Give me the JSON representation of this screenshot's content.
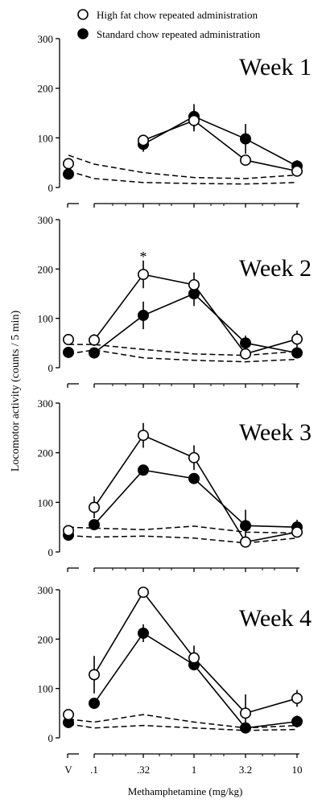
{
  "legend": {
    "items": [
      {
        "label": "High fat chow repeated administration",
        "marker": "open-circle"
      },
      {
        "label": "Standard chow repeated administration",
        "marker": "filled-circle"
      }
    ]
  },
  "shared_axes": {
    "ylabel": "Locomotor activity (counts / 5 min)",
    "xlabel": "Methamphetamine (mg/kg)",
    "x_tick_labels": [
      "V",
      ".1",
      ".32",
      "1",
      "3.2",
      "10"
    ]
  },
  "chart_data": [
    {
      "type": "line",
      "title": "Week 1",
      "categories": [
        "V",
        ".1",
        ".32",
        "1",
        "3.2",
        "10"
      ],
      "ylim": [
        0,
        300
      ],
      "yticks": [
        "0",
        "100",
        "200",
        "300"
      ],
      "series": [
        {
          "name": "High fat chow repeated administration",
          "marker": "open-circle",
          "points": [
            {
              "x": "V",
              "y": 48,
              "err": 0
            },
            {
              "x": ".32",
              "y": 95,
              "err": 8
            },
            {
              "x": "1",
              "y": 135,
              "err": 22
            },
            {
              "x": "3.2",
              "y": 55,
              "err": 0
            },
            {
              "x": "10",
              "y": 33,
              "err": 0
            }
          ]
        },
        {
          "name": "Standard chow repeated administration",
          "marker": "filled-circle",
          "points": [
            {
              "x": "V",
              "y": 27,
              "err": 0
            },
            {
              "x": ".32",
              "y": 87,
              "err": 15
            },
            {
              "x": "1",
              "y": 143,
              "err": 25
            },
            {
              "x": "3.2",
              "y": 98,
              "err": 30
            },
            {
              "x": "10",
              "y": 43,
              "err": 12
            }
          ]
        }
      ],
      "reference_lines": [
        {
          "style": "dashed",
          "values": [
            65,
            47,
            30,
            20,
            18,
            25
          ]
        },
        {
          "style": "dashed",
          "values": [
            33,
            18,
            10,
            8,
            7,
            10
          ]
        }
      ],
      "annotations": []
    },
    {
      "type": "line",
      "title": "Week 2",
      "categories": [
        "V",
        ".1",
        ".32",
        "1",
        "3.2",
        "10"
      ],
      "ylim": [
        0,
        300
      ],
      "yticks": [
        "0",
        "100",
        "200",
        "300"
      ],
      "series": [
        {
          "name": "High fat chow repeated administration",
          "marker": "open-circle",
          "points": [
            {
              "x": "V",
              "y": 57,
              "err": 0
            },
            {
              "x": ".1",
              "y": 56,
              "err": 12
            },
            {
              "x": ".32",
              "y": 189,
              "err": 28
            },
            {
              "x": "1",
              "y": 168,
              "err": 25
            },
            {
              "x": "3.2",
              "y": 28,
              "err": 0
            },
            {
              "x": "10",
              "y": 58,
              "err": 17
            }
          ]
        },
        {
          "name": "Standard chow repeated administration",
          "marker": "filled-circle",
          "points": [
            {
              "x": "V",
              "y": 31,
              "err": 0
            },
            {
              "x": ".1",
              "y": 30,
              "err": 0
            },
            {
              "x": ".32",
              "y": 106,
              "err": 28
            },
            {
              "x": "1",
              "y": 150,
              "err": 25
            },
            {
              "x": "3.2",
              "y": 50,
              "err": 15
            },
            {
              "x": "10",
              "y": 30,
              "err": 0
            }
          ]
        }
      ],
      "reference_lines": [
        {
          "style": "dashed",
          "values": [
            47,
            47,
            37,
            28,
            25,
            33
          ]
        },
        {
          "style": "dashed",
          "values": [
            28,
            36,
            20,
            15,
            12,
            17
          ]
        }
      ],
      "annotations": [
        {
          "text": "*",
          "x": ".32",
          "y": 225
        }
      ]
    },
    {
      "type": "line",
      "title": "Week 3",
      "categories": [
        "V",
        ".1",
        ".32",
        "1",
        "3.2",
        "10"
      ],
      "ylim": [
        0,
        300
      ],
      "yticks": [
        "0",
        "100",
        "200",
        "300"
      ],
      "series": [
        {
          "name": "High fat chow repeated administration",
          "marker": "open-circle",
          "points": [
            {
              "x": "V",
              "y": 43,
              "err": 0
            },
            {
              "x": ".1",
              "y": 90,
              "err": 22
            },
            {
              "x": ".32",
              "y": 235,
              "err": 25
            },
            {
              "x": "1",
              "y": 190,
              "err": 25
            },
            {
              "x": "3.2",
              "y": 20,
              "err": 0
            },
            {
              "x": "10",
              "y": 40,
              "err": 0
            }
          ]
        },
        {
          "name": "Standard chow repeated administration",
          "marker": "filled-circle",
          "points": [
            {
              "x": "V",
              "y": 34,
              "err": 0
            },
            {
              "x": ".1",
              "y": 55,
              "err": 0
            },
            {
              "x": ".32",
              "y": 165,
              "err": 0
            },
            {
              "x": "1",
              "y": 148,
              "err": 0
            },
            {
              "x": "3.2",
              "y": 53,
              "err": 32
            },
            {
              "x": "10",
              "y": 50,
              "err": 15
            }
          ]
        }
      ],
      "reference_lines": [
        {
          "style": "dashed",
          "values": [
            50,
            48,
            45,
            52,
            40,
            38
          ]
        },
        {
          "style": "dashed",
          "values": [
            33,
            30,
            32,
            28,
            18,
            28
          ]
        }
      ],
      "annotations": []
    },
    {
      "type": "line",
      "title": "Week 4",
      "categories": [
        "V",
        ".1",
        ".32",
        "1",
        "3.2",
        "10"
      ],
      "ylim": [
        0,
        300
      ],
      "yticks": [
        "0",
        "100",
        "200",
        "300"
      ],
      "series": [
        {
          "name": "High fat chow repeated administration",
          "marker": "open-circle",
          "points": [
            {
              "x": "V",
              "y": 47,
              "err": 0
            },
            {
              "x": ".1",
              "y": 128,
              "err": 38
            },
            {
              "x": ".32",
              "y": 295,
              "err": 0
            },
            {
              "x": "1",
              "y": 162,
              "err": 25
            },
            {
              "x": "3.2",
              "y": 50,
              "err": 38
            },
            {
              "x": "10",
              "y": 80,
              "err": 17
            }
          ]
        },
        {
          "name": "Standard chow repeated administration",
          "marker": "filled-circle",
          "points": [
            {
              "x": "V",
              "y": 31,
              "err": 0
            },
            {
              "x": ".1",
              "y": 70,
              "err": 0
            },
            {
              "x": ".32",
              "y": 212,
              "err": 18
            },
            {
              "x": "1",
              "y": 148,
              "err": 0
            },
            {
              "x": "3.2",
              "y": 20,
              "err": 0
            },
            {
              "x": "10",
              "y": 33,
              "err": 12
            }
          ]
        }
      ],
      "reference_lines": [
        {
          "style": "dashed",
          "values": [
            38,
            32,
            47,
            32,
            20,
            25
          ]
        },
        {
          "style": "dashed",
          "values": [
            28,
            20,
            25,
            20,
            15,
            17
          ]
        }
      ],
      "annotations": []
    }
  ]
}
